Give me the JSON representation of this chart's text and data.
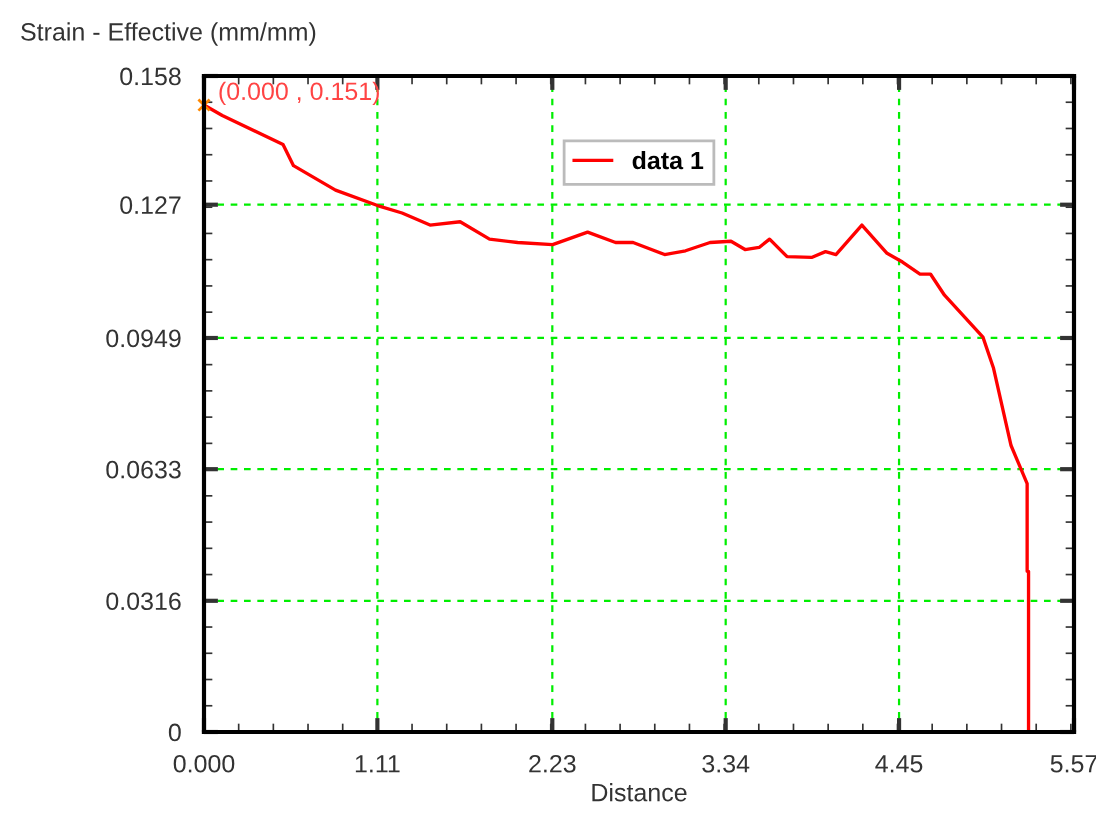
{
  "chart_data": {
    "type": "line",
    "ylabel": "Strain - Effective (mm/mm)",
    "xlabel": "Distance",
    "x": [
      0.0,
      0.117,
      0.506,
      0.573,
      0.842,
      1.111,
      1.268,
      1.447,
      1.64,
      1.828,
      2.008,
      2.232,
      2.456,
      2.635,
      2.747,
      2.949,
      3.083,
      3.24,
      3.374,
      3.464,
      3.554,
      3.621,
      3.733,
      3.89,
      3.979,
      4.046,
      4.212,
      4.373,
      4.472,
      4.584,
      4.651,
      4.741,
      4.987,
      5.055,
      5.167,
      5.27,
      5.27,
      5.279,
      5.279
    ],
    "series": [
      {
        "name": "data 1",
        "color": "#ff0000",
        "values": [
          0.151,
          0.1485,
          0.1415,
          0.1364,
          0.1305,
          0.1268,
          0.125,
          0.1221,
          0.1229,
          0.1187,
          0.1179,
          0.1174,
          0.1204,
          0.1179,
          0.1179,
          0.115,
          0.1159,
          0.1179,
          0.1182,
          0.1162,
          0.1167,
          0.1187,
          0.1145,
          0.1143,
          0.1157,
          0.115,
          0.1221,
          0.1153,
          0.1132,
          0.1103,
          0.1103,
          0.1052,
          0.0951,
          0.0876,
          0.069,
          0.0598,
          0.0387,
          0.0387,
          0.0
        ]
      }
    ],
    "xlim": [
      0,
      5.57
    ],
    "ylim": [
      0,
      0.158
    ],
    "xticks": [
      {
        "value": 0,
        "label": "0.000"
      },
      1.11,
      2.23,
      3.34,
      4.45,
      5.57
    ],
    "yticks": [
      0,
      0.0316,
      0.0633,
      0.0949,
      0.127,
      0.158
    ],
    "grid": true,
    "legend": "top",
    "marker": "none",
    "line_style": "solid",
    "annotations": [
      {
        "text": "(0.000 , 0.151)",
        "x": 0.0,
        "y": 0.151
      }
    ]
  }
}
